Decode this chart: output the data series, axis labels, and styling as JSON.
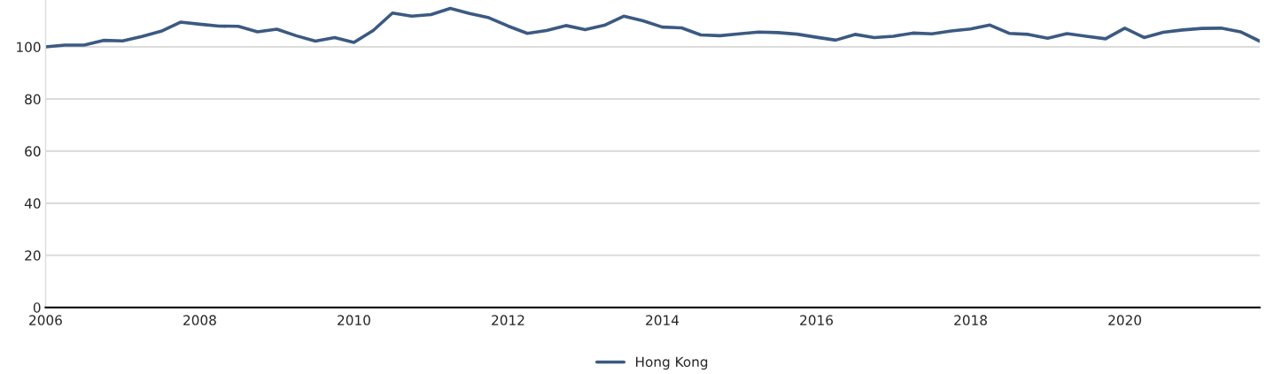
{
  "chart_data": {
    "type": "line",
    "x": [
      2006.0,
      2006.25,
      2006.5,
      2006.75,
      2007.0,
      2007.25,
      2007.5,
      2007.75,
      2008.0,
      2008.25,
      2008.5,
      2008.75,
      2009.0,
      2009.25,
      2009.5,
      2009.75,
      2010.0,
      2010.25,
      2010.5,
      2010.75,
      2011.0,
      2011.25,
      2011.5,
      2011.75,
      2012.0,
      2012.25,
      2012.5,
      2012.75,
      2013.0,
      2013.25,
      2013.5,
      2013.75,
      2014.0,
      2014.25,
      2014.5,
      2014.75,
      2015.0,
      2015.25,
      2015.5,
      2015.75,
      2016.0,
      2016.25,
      2016.5,
      2016.75,
      2017.0,
      2017.25,
      2017.5,
      2017.75,
      2018.0,
      2018.25,
      2018.5,
      2018.75,
      2019.0,
      2019.25,
      2019.5,
      2019.75,
      2020.0,
      2020.25,
      2020.5,
      2020.75,
      2021.0,
      2021.25,
      2021.5,
      2021.75
    ],
    "series": [
      {
        "name": "Hong Kong",
        "color": "#3b5a82",
        "values": [
          100,
          100.7,
          100.7,
          102.5,
          102.3,
          104,
          106,
          109.5,
          108.7,
          108,
          107.9,
          105.8,
          106.8,
          104.3,
          102.2,
          103.6,
          101.7,
          106.3,
          113,
          111.8,
          112.4,
          114.8,
          112.8,
          111.2,
          108,
          105.2,
          106.3,
          108.2,
          106.6,
          108.3,
          111.8,
          110,
          107.6,
          107.3,
          104.6,
          104.3,
          105,
          105.7,
          105.5,
          104.9,
          103.7,
          102.6,
          104.8,
          103.6,
          104.1,
          105.3,
          105,
          106.1,
          106.9,
          108.4,
          105.2,
          104.8,
          103.3,
          105.1,
          104.1,
          103.1,
          107.2,
          103.6,
          105.6,
          106.5,
          107.1,
          107.2,
          105.8,
          102.2
        ]
      }
    ],
    "xlim": [
      2006,
      2021.75
    ],
    "xticks": [
      2006,
      2008,
      2010,
      2012,
      2014,
      2016,
      2018,
      2020
    ],
    "ylim": [
      0,
      118
    ],
    "yticks": [
      0,
      20,
      40,
      60,
      80,
      100
    ],
    "grid": "y",
    "legend": "bottom",
    "line_style": "solid",
    "marker": "none"
  }
}
